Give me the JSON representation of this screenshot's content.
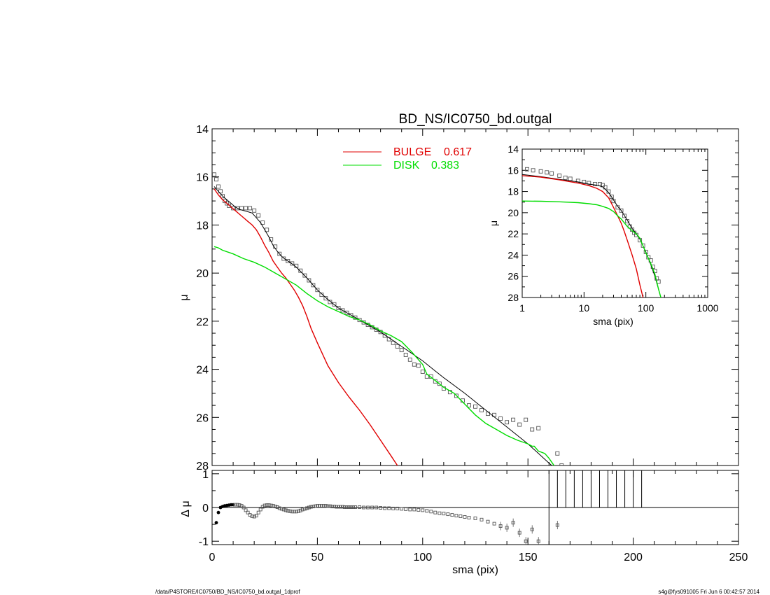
{
  "title": "BD_NS/IC0750_bd.outgal",
  "footer_left": "/data/P4STORE/IC0750/BD_NS/IC0750_bd.outgal_1dprof",
  "footer_right": "s4g@fys091005  Fri Jun  6 00:42:57 2014",
  "colors": {
    "bulge": "#e00000",
    "disk": "#00dd00",
    "model": "#000000",
    "data": "#555555",
    "axis": "#000000"
  },
  "chart_data": [
    {
      "id": "main",
      "type": "scatter",
      "xlabel": "sma (pix)",
      "ylabel": "μ",
      "xlim": [
        0,
        250
      ],
      "ylim": [
        28,
        14
      ],
      "x_ticks": [
        0,
        50,
        100,
        150,
        200,
        250
      ],
      "y_ticks": [
        14,
        16,
        18,
        20,
        22,
        24,
        26,
        28
      ],
      "legend": [
        {
          "label": "BULGE",
          "value": "0.617",
          "color": "#e00000"
        },
        {
          "label": "DISK",
          "value": "0.383",
          "color": "#00dd00"
        }
      ],
      "series": [
        {
          "kind": "data",
          "x": [
            1,
            2,
            3,
            4,
            5,
            6,
            7,
            8,
            10,
            12,
            14,
            16,
            18,
            20,
            22,
            24,
            26,
            28,
            30,
            32,
            34,
            36,
            38,
            40,
            42,
            44,
            46,
            48,
            50,
            52,
            54,
            56,
            58,
            60,
            62,
            64,
            66,
            68,
            70,
            72,
            74,
            76,
            78,
            80,
            82,
            84,
            86,
            88,
            90,
            92,
            94,
            96,
            98,
            100,
            102,
            104,
            106,
            108,
            110,
            113,
            116,
            119,
            122,
            125,
            128,
            131,
            134,
            137,
            140,
            143,
            146,
            149,
            152,
            155,
            164,
            166
          ],
          "y": [
            15.9,
            16.1,
            16.4,
            16.6,
            16.8,
            17.0,
            17.1,
            17.2,
            17.3,
            17.3,
            17.3,
            17.3,
            17.3,
            17.4,
            17.6,
            17.9,
            18.2,
            18.6,
            18.9,
            19.2,
            19.4,
            19.5,
            19.6,
            19.7,
            19.9,
            20.1,
            20.3,
            20.5,
            20.7,
            20.9,
            21.05,
            21.2,
            21.3,
            21.45,
            21.55,
            21.65,
            21.75,
            21.85,
            21.95,
            22.05,
            22.15,
            22.25,
            22.35,
            22.45,
            22.6,
            22.75,
            22.9,
            23.05,
            23.2,
            23.4,
            23.6,
            23.8,
            23.85,
            24.1,
            24.3,
            24.3,
            24.5,
            24.6,
            24.8,
            24.95,
            25.1,
            25.3,
            25.5,
            25.55,
            25.7,
            25.85,
            25.9,
            26.05,
            26.2,
            26.1,
            26.3,
            26.1,
            26.5,
            26.45,
            27.5,
            28.0
          ]
        },
        {
          "kind": "model",
          "name": "total",
          "color": "#000000",
          "x": [
            1,
            3,
            5,
            7,
            9,
            11,
            13,
            15,
            17,
            19,
            21,
            23,
            25,
            27,
            29,
            31,
            33,
            35,
            37,
            40,
            45,
            50,
            55,
            60,
            65,
            70,
            75,
            80,
            85,
            90,
            95,
            100,
            105,
            110,
            120,
            130,
            140,
            150,
            155,
            160,
            164
          ],
          "y": [
            16.4,
            16.6,
            16.8,
            16.95,
            17.1,
            17.25,
            17.35,
            17.4,
            17.45,
            17.5,
            17.7,
            17.9,
            18.2,
            18.5,
            18.85,
            19.1,
            19.3,
            19.45,
            19.55,
            19.75,
            20.2,
            20.7,
            21.1,
            21.45,
            21.7,
            21.95,
            22.2,
            22.45,
            22.75,
            23.05,
            23.35,
            23.65,
            24.0,
            24.35,
            25.0,
            25.7,
            26.4,
            27.1,
            27.5,
            27.9,
            28.2
          ]
        },
        {
          "kind": "bulge",
          "name": "BULGE",
          "color": "#e00000",
          "x": [
            1,
            3,
            5,
            7,
            9,
            11,
            13,
            15,
            17,
            19,
            21,
            23,
            25,
            27,
            29,
            31,
            33,
            35,
            37,
            39,
            41,
            43,
            45,
            47,
            50,
            55,
            60,
            65,
            70,
            75,
            80,
            85,
            88
          ],
          "y": [
            16.5,
            16.75,
            16.95,
            17.1,
            17.25,
            17.4,
            17.55,
            17.7,
            17.85,
            18.0,
            18.2,
            18.5,
            18.85,
            19.15,
            19.5,
            19.75,
            20.0,
            20.2,
            20.45,
            20.7,
            21.0,
            21.35,
            21.8,
            22.3,
            22.9,
            23.85,
            24.55,
            25.15,
            25.7,
            26.3,
            26.95,
            27.6,
            28.0
          ]
        },
        {
          "kind": "disk",
          "name": "DISK",
          "color": "#00dd00",
          "x": [
            1,
            3,
            5,
            10,
            15,
            20,
            25,
            30,
            35,
            40,
            45,
            50,
            55,
            60,
            65,
            70,
            75,
            80,
            85,
            90,
            95,
            100,
            101,
            102,
            105,
            110,
            115,
            120,
            125,
            130,
            135,
            140,
            145,
            150,
            152,
            153,
            155,
            158,
            160,
            162,
            164
          ],
          "y": [
            18.9,
            18.95,
            19.05,
            19.2,
            19.4,
            19.55,
            19.75,
            20.0,
            20.25,
            20.5,
            20.85,
            21.15,
            21.4,
            21.6,
            21.8,
            21.95,
            22.15,
            22.4,
            22.6,
            22.85,
            23.3,
            23.8,
            24.0,
            24.2,
            24.4,
            24.75,
            25.0,
            25.45,
            25.9,
            26.25,
            26.5,
            26.75,
            26.95,
            27.1,
            27.2,
            27.2,
            27.4,
            27.5,
            27.7,
            27.95,
            28.2
          ]
        }
      ]
    },
    {
      "id": "inset",
      "type": "scatter",
      "xlabel": "sma (pix)",
      "ylabel": "μ",
      "xscale": "log",
      "xlim": [
        1,
        1000
      ],
      "ylim": [
        28,
        14
      ],
      "x_ticks": [
        1,
        10,
        100,
        1000
      ],
      "x_tick_labels": [
        "1",
        "10",
        "100",
        "1000"
      ],
      "y_ticks": [
        14,
        16,
        18,
        20,
        22,
        24,
        26,
        28
      ],
      "series": [
        {
          "kind": "data",
          "x": [
            1.2,
            1.5,
            2,
            2.5,
            3,
            4,
            5,
            6,
            8,
            10,
            12,
            15,
            18,
            20,
            22,
            25,
            28,
            30,
            35,
            40,
            45,
            50,
            55,
            60,
            65,
            70,
            80,
            90,
            100,
            110,
            120,
            130,
            140,
            150,
            160
          ],
          "y": [
            15.9,
            16.0,
            16.1,
            16.2,
            16.3,
            16.5,
            16.7,
            16.8,
            17.0,
            17.1,
            17.2,
            17.3,
            17.3,
            17.4,
            17.6,
            18.0,
            18.5,
            18.9,
            19.5,
            19.8,
            20.3,
            20.8,
            21.3,
            21.6,
            21.9,
            22.1,
            22.6,
            23.1,
            23.7,
            24.2,
            24.5,
            25.1,
            25.5,
            26.2,
            26.5
          ]
        },
        {
          "kind": "model",
          "color": "#000000",
          "x": [
            1,
            2,
            4,
            8,
            12,
            16,
            20,
            25,
            30,
            35,
            40,
            50,
            60,
            70,
            80,
            100,
            120,
            140,
            160,
            175
          ],
          "y": [
            16.4,
            16.6,
            16.85,
            17.1,
            17.3,
            17.4,
            17.55,
            18.1,
            18.8,
            19.4,
            19.8,
            20.7,
            21.5,
            22.0,
            22.5,
            23.7,
            24.9,
            26.0,
            27.2,
            28.0
          ]
        },
        {
          "kind": "bulge",
          "color": "#e00000",
          "x": [
            1,
            2,
            4,
            8,
            12,
            16,
            20,
            25,
            30,
            35,
            40,
            45,
            50,
            60,
            70,
            80,
            90
          ],
          "y": [
            16.5,
            16.65,
            16.9,
            17.2,
            17.45,
            17.7,
            18.0,
            18.6,
            19.5,
            20.3,
            21.0,
            21.8,
            22.6,
            24.0,
            25.3,
            26.8,
            28.0
          ]
        },
        {
          "kind": "disk",
          "color": "#00dd00",
          "x": [
            1,
            2,
            4,
            8,
            12,
            16,
            20,
            25,
            30,
            35,
            40,
            50,
            60,
            70,
            80,
            100,
            120,
            140,
            160,
            175
          ],
          "y": [
            18.9,
            18.92,
            18.97,
            19.05,
            19.15,
            19.25,
            19.4,
            19.6,
            19.9,
            20.3,
            20.6,
            21.3,
            21.7,
            22.0,
            22.4,
            23.8,
            24.8,
            25.8,
            27.2,
            28.0
          ]
        }
      ]
    },
    {
      "id": "residual",
      "type": "scatter",
      "xlabel": "sma (pix)",
      "ylabel": "Δ μ",
      "xlim": [
        0,
        250
      ],
      "ylim": [
        -1.1,
        1.1
      ],
      "x_ticks": [
        0,
        50,
        100,
        150,
        200,
        250
      ],
      "y_ticks": [
        1,
        0,
        -1
      ],
      "series": [
        {
          "kind": "data",
          "x": [
            2,
            3,
            4,
            5,
            6,
            7,
            8,
            9,
            10,
            11,
            12,
            13,
            14,
            15,
            16,
            17,
            18,
            19,
            20,
            21,
            22,
            23,
            24,
            25,
            26,
            27,
            28,
            29,
            30,
            31,
            32,
            33,
            34,
            35,
            36,
            37,
            38,
            39,
            40,
            41,
            42,
            43,
            44,
            45,
            46,
            47,
            48,
            49,
            50,
            51,
            52,
            53,
            54,
            55,
            56,
            57,
            58,
            59,
            60,
            61,
            62,
            63,
            64,
            65,
            66,
            67,
            68,
            70,
            72,
            74,
            76,
            78,
            80,
            82,
            84,
            86,
            88,
            90,
            92,
            94,
            96,
            98,
            100,
            102,
            104,
            106,
            108,
            110,
            112,
            114,
            116,
            118,
            120,
            122,
            125,
            128,
            131,
            134,
            137,
            140,
            143,
            146,
            149,
            152,
            155
          ],
          "y": [
            -0.45,
            -0.15,
            0.0,
            0.03,
            0.05,
            0.06,
            0.07,
            0.08,
            0.08,
            0.08,
            0.08,
            0.07,
            0.05,
            0.0,
            -0.08,
            -0.15,
            -0.22,
            -0.26,
            -0.27,
            -0.24,
            -0.15,
            -0.06,
            0.02,
            0.06,
            0.07,
            0.07,
            0.06,
            0.05,
            0.03,
            0.01,
            -0.02,
            -0.04,
            -0.06,
            -0.08,
            -0.1,
            -0.11,
            -0.12,
            -0.12,
            -0.12,
            -0.11,
            -0.09,
            -0.06,
            -0.04,
            -0.02,
            0.0,
            0.02,
            0.03,
            0.04,
            0.05,
            0.05,
            0.05,
            0.05,
            0.05,
            0.04,
            0.04,
            0.03,
            0.03,
            0.02,
            0.02,
            0.02,
            0.02,
            0.01,
            0.01,
            0.01,
            0.01,
            0.01,
            0.01,
            0.01,
            0.0,
            0.0,
            0.0,
            0.0,
            -0.01,
            -0.02,
            -0.02,
            -0.03,
            -0.03,
            -0.04,
            -0.05,
            -0.06,
            -0.06,
            -0.07,
            -0.08,
            -0.1,
            -0.12,
            -0.15,
            -0.17,
            -0.18,
            -0.2,
            -0.22,
            -0.24,
            -0.26,
            -0.28,
            -0.3,
            -0.32,
            -0.36,
            -0.42,
            -0.48,
            -0.55,
            -0.6,
            -0.45,
            -0.75,
            -1.0,
            -0.65,
            -1.0
          ]
        },
        {
          "kind": "isolated",
          "x": [
            164
          ],
          "y": [
            -0.52
          ]
        }
      ],
      "vertical_lines_x": [
        160,
        164,
        168,
        172,
        176,
        180,
        184,
        188,
        192,
        196,
        200,
        204
      ]
    }
  ]
}
